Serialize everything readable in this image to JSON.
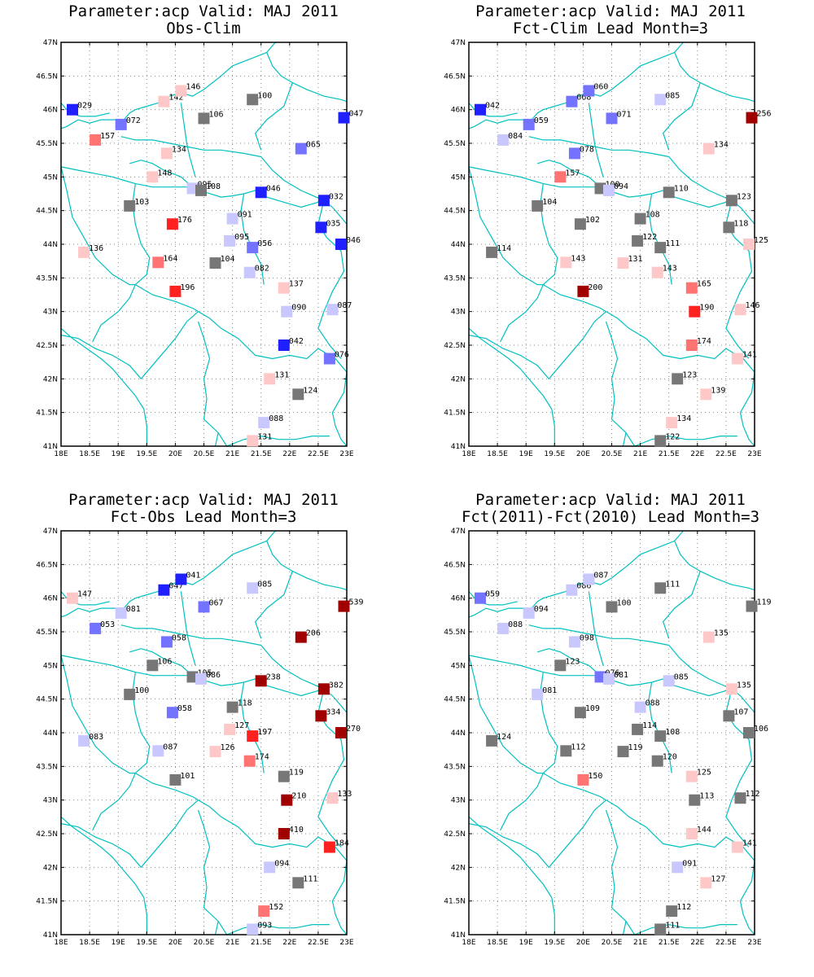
{
  "chart_data": [
    {
      "type": "scatter",
      "title": "Parameter:acp Valid: MAJ 2011",
      "subtitle": "Obs-Clim",
      "xlim": [
        18,
        23
      ],
      "ylim": [
        41,
        47
      ],
      "x_ticks": [
        "18E",
        "18.5E",
        "19E",
        "19.5E",
        "20E",
        "20.5E",
        "21E",
        "21.5E",
        "22E",
        "22.5E",
        "23E"
      ],
      "y_ticks": [
        "41N",
        "41.5N",
        "42N",
        "42.5N",
        "43N",
        "43.5N",
        "44N",
        "44.5N",
        "45N",
        "45.5N",
        "46N",
        "46.5N",
        "47N"
      ],
      "grid": true,
      "points": [
        {
          "lon": 18.2,
          "lat": 46.0,
          "label": "029"
        },
        {
          "lon": 19.05,
          "lat": 45.78,
          "label": "072"
        },
        {
          "lon": 18.6,
          "lat": 45.55,
          "label": "157"
        },
        {
          "lon": 19.8,
          "lat": 46.12,
          "label": "142"
        },
        {
          "lon": 20.1,
          "lat": 46.28,
          "label": "146"
        },
        {
          "lon": 21.35,
          "lat": 46.15,
          "label": "100"
        },
        {
          "lon": 20.5,
          "lat": 45.87,
          "label": "106"
        },
        {
          "lon": 22.95,
          "lat": 45.88,
          "label": "047"
        },
        {
          "lon": 19.85,
          "lat": 45.35,
          "label": "134"
        },
        {
          "lon": 22.2,
          "lat": 45.42,
          "label": "065"
        },
        {
          "lon": 19.6,
          "lat": 45.0,
          "label": "148"
        },
        {
          "lon": 20.3,
          "lat": 44.83,
          "label": "095"
        },
        {
          "lon": 20.45,
          "lat": 44.8,
          "label": "108"
        },
        {
          "lon": 21.5,
          "lat": 44.77,
          "label": "046"
        },
        {
          "lon": 22.6,
          "lat": 44.65,
          "label": "032"
        },
        {
          "lon": 19.2,
          "lat": 44.57,
          "label": "103"
        },
        {
          "lon": 19.95,
          "lat": 44.3,
          "label": "176"
        },
        {
          "lon": 21.0,
          "lat": 44.38,
          "label": "091"
        },
        {
          "lon": 22.55,
          "lat": 44.25,
          "label": "035"
        },
        {
          "lon": 22.9,
          "lat": 44.0,
          "label": "046"
        },
        {
          "lon": 20.95,
          "lat": 44.05,
          "label": "095"
        },
        {
          "lon": 21.35,
          "lat": 43.95,
          "label": "056"
        },
        {
          "lon": 18.4,
          "lat": 43.88,
          "label": "136"
        },
        {
          "lon": 19.7,
          "lat": 43.73,
          "label": "164"
        },
        {
          "lon": 20.7,
          "lat": 43.72,
          "label": "104"
        },
        {
          "lon": 21.3,
          "lat": 43.58,
          "label": "082"
        },
        {
          "lon": 21.9,
          "lat": 43.35,
          "label": "137"
        },
        {
          "lon": 20.0,
          "lat": 43.3,
          "label": "196"
        },
        {
          "lon": 21.95,
          "lat": 43.0,
          "label": "090"
        },
        {
          "lon": 22.75,
          "lat": 43.03,
          "label": "087"
        },
        {
          "lon": 21.9,
          "lat": 42.5,
          "label": "042"
        },
        {
          "lon": 22.7,
          "lat": 42.3,
          "label": "076"
        },
        {
          "lon": 21.65,
          "lat": 42.0,
          "label": "131"
        },
        {
          "lon": 22.15,
          "lat": 41.77,
          "label": "124"
        },
        {
          "lon": 21.55,
          "lat": 41.35,
          "label": "088"
        },
        {
          "lon": 21.35,
          "lat": 41.08,
          "label": "131"
        }
      ]
    },
    {
      "type": "scatter",
      "title": "Parameter:acp Valid: MAJ 2011",
      "subtitle": "Fct-Clim Lead Month=3",
      "xlim": [
        18,
        23
      ],
      "ylim": [
        41,
        47
      ],
      "x_ticks": [
        "18E",
        "18.5E",
        "19E",
        "19.5E",
        "20E",
        "20.5E",
        "21E",
        "21.5E",
        "22E",
        "22.5E",
        "23E"
      ],
      "y_ticks": [
        "41N",
        "41.5N",
        "42N",
        "42.5N",
        "43N",
        "43.5N",
        "44N",
        "44.5N",
        "45N",
        "45.5N",
        "46N",
        "46.5N",
        "47N"
      ],
      "grid": true,
      "points": [
        {
          "lon": 18.2,
          "lat": 46.0,
          "label": "042"
        },
        {
          "lon": 19.05,
          "lat": 45.78,
          "label": "059"
        },
        {
          "lon": 18.6,
          "lat": 45.55,
          "label": "084"
        },
        {
          "lon": 19.8,
          "lat": 46.12,
          "label": "068"
        },
        {
          "lon": 20.1,
          "lat": 46.28,
          "label": "060"
        },
        {
          "lon": 21.35,
          "lat": 46.15,
          "label": "085"
        },
        {
          "lon": 20.5,
          "lat": 45.87,
          "label": "071"
        },
        {
          "lon": 22.95,
          "lat": 45.88,
          "label": "256"
        },
        {
          "lon": 19.85,
          "lat": 45.35,
          "label": "078"
        },
        {
          "lon": 22.2,
          "lat": 45.42,
          "label": "134"
        },
        {
          "lon": 19.6,
          "lat": 45.0,
          "label": "157"
        },
        {
          "lon": 20.3,
          "lat": 44.83,
          "label": "100"
        },
        {
          "lon": 20.45,
          "lat": 44.8,
          "label": "094"
        },
        {
          "lon": 21.5,
          "lat": 44.77,
          "label": "110"
        },
        {
          "lon": 22.6,
          "lat": 44.65,
          "label": "123"
        },
        {
          "lon": 19.2,
          "lat": 44.57,
          "label": "104"
        },
        {
          "lon": 19.95,
          "lat": 44.3,
          "label": "102"
        },
        {
          "lon": 21.0,
          "lat": 44.38,
          "label": "108"
        },
        {
          "lon": 22.55,
          "lat": 44.25,
          "label": "118"
        },
        {
          "lon": 22.9,
          "lat": 44.0,
          "label": "125"
        },
        {
          "lon": 20.95,
          "lat": 44.05,
          "label": "122"
        },
        {
          "lon": 21.35,
          "lat": 43.95,
          "label": "111"
        },
        {
          "lon": 18.4,
          "lat": 43.88,
          "label": "114"
        },
        {
          "lon": 19.7,
          "lat": 43.73,
          "label": "143"
        },
        {
          "lon": 20.7,
          "lat": 43.72,
          "label": "131"
        },
        {
          "lon": 21.3,
          "lat": 43.58,
          "label": "143"
        },
        {
          "lon": 21.9,
          "lat": 43.35,
          "label": "165"
        },
        {
          "lon": 20.0,
          "lat": 43.3,
          "label": "200"
        },
        {
          "lon": 21.95,
          "lat": 43.0,
          "label": "190"
        },
        {
          "lon": 22.75,
          "lat": 43.03,
          "label": "146"
        },
        {
          "lon": 21.9,
          "lat": 42.5,
          "label": "174"
        },
        {
          "lon": 22.7,
          "lat": 42.3,
          "label": "141"
        },
        {
          "lon": 21.65,
          "lat": 42.0,
          "label": "123"
        },
        {
          "lon": 22.15,
          "lat": 41.77,
          "label": "139"
        },
        {
          "lon": 21.55,
          "lat": 41.35,
          "label": "134"
        },
        {
          "lon": 21.35,
          "lat": 41.08,
          "label": "122"
        }
      ]
    },
    {
      "type": "scatter",
      "title": "Parameter:acp Valid: MAJ 2011",
      "subtitle": "Fct-Obs Lead Month=3",
      "xlim": [
        18,
        23
      ],
      "ylim": [
        41,
        47
      ],
      "x_ticks": [
        "18E",
        "18.5E",
        "19E",
        "19.5E",
        "20E",
        "20.5E",
        "21E",
        "21.5E",
        "22E",
        "22.5E",
        "23E"
      ],
      "y_ticks": [
        "41N",
        "41.5N",
        "42N",
        "42.5N",
        "43N",
        "43.5N",
        "44N",
        "44.5N",
        "45N",
        "45.5N",
        "46N",
        "46.5N",
        "47N"
      ],
      "grid": true,
      "points": [
        {
          "lon": 18.2,
          "lat": 46.0,
          "label": "147"
        },
        {
          "lon": 19.05,
          "lat": 45.78,
          "label": "081"
        },
        {
          "lon": 18.6,
          "lat": 45.55,
          "label": "053"
        },
        {
          "lon": 19.8,
          "lat": 46.12,
          "label": "047"
        },
        {
          "lon": 20.1,
          "lat": 46.28,
          "label": "041"
        },
        {
          "lon": 21.35,
          "lat": 46.15,
          "label": "085"
        },
        {
          "lon": 20.5,
          "lat": 45.87,
          "label": "067"
        },
        {
          "lon": 22.95,
          "lat": 45.88,
          "label": "539"
        },
        {
          "lon": 19.85,
          "lat": 45.35,
          "label": "058"
        },
        {
          "lon": 22.2,
          "lat": 45.42,
          "label": "206"
        },
        {
          "lon": 19.6,
          "lat": 45.0,
          "label": "106"
        },
        {
          "lon": 20.3,
          "lat": 44.83,
          "label": "105"
        },
        {
          "lon": 20.45,
          "lat": 44.8,
          "label": "086"
        },
        {
          "lon": 21.5,
          "lat": 44.77,
          "label": "238"
        },
        {
          "lon": 22.6,
          "lat": 44.65,
          "label": "382"
        },
        {
          "lon": 19.2,
          "lat": 44.57,
          "label": "100"
        },
        {
          "lon": 19.95,
          "lat": 44.3,
          "label": "058"
        },
        {
          "lon": 21.0,
          "lat": 44.38,
          "label": "118"
        },
        {
          "lon": 22.55,
          "lat": 44.25,
          "label": "334"
        },
        {
          "lon": 22.9,
          "lat": 44.0,
          "label": "270"
        },
        {
          "lon": 20.95,
          "lat": 44.05,
          "label": "127"
        },
        {
          "lon": 21.35,
          "lat": 43.95,
          "label": "197"
        },
        {
          "lon": 18.4,
          "lat": 43.88,
          "label": "083"
        },
        {
          "lon": 19.7,
          "lat": 43.73,
          "label": "087"
        },
        {
          "lon": 20.7,
          "lat": 43.72,
          "label": "126"
        },
        {
          "lon": 21.3,
          "lat": 43.58,
          "label": "174"
        },
        {
          "lon": 21.9,
          "lat": 43.35,
          "label": "119"
        },
        {
          "lon": 20.0,
          "lat": 43.3,
          "label": "101"
        },
        {
          "lon": 21.95,
          "lat": 43.0,
          "label": "210"
        },
        {
          "lon": 22.75,
          "lat": 43.03,
          "label": "133"
        },
        {
          "lon": 21.9,
          "lat": 42.5,
          "label": "410"
        },
        {
          "lon": 22.7,
          "lat": 42.3,
          "label": "184"
        },
        {
          "lon": 21.65,
          "lat": 42.0,
          "label": "094"
        },
        {
          "lon": 22.15,
          "lat": 41.77,
          "label": "111"
        },
        {
          "lon": 21.55,
          "lat": 41.35,
          "label": "152"
        },
        {
          "lon": 21.35,
          "lat": 41.08,
          "label": "093"
        }
      ]
    },
    {
      "type": "scatter",
      "title": "Parameter:acp Valid: MAJ 2011",
      "subtitle": "Fct(2011)-Fct(2010) Lead Month=3",
      "xlim": [
        18,
        23
      ],
      "ylim": [
        41,
        47
      ],
      "x_ticks": [
        "18E",
        "18.5E",
        "19E",
        "19.5E",
        "20E",
        "20.5E",
        "21E",
        "21.5E",
        "22E",
        "22.5E",
        "23E"
      ],
      "y_ticks": [
        "41N",
        "41.5N",
        "42N",
        "42.5N",
        "43N",
        "43.5N",
        "44N",
        "44.5N",
        "45N",
        "45.5N",
        "46N",
        "46.5N",
        "47N"
      ],
      "grid": true,
      "points": [
        {
          "lon": 18.2,
          "lat": 46.0,
          "label": "059"
        },
        {
          "lon": 19.05,
          "lat": 45.78,
          "label": "094"
        },
        {
          "lon": 18.6,
          "lat": 45.55,
          "label": "088"
        },
        {
          "lon": 19.8,
          "lat": 46.12,
          "label": "086"
        },
        {
          "lon": 20.1,
          "lat": 46.28,
          "label": "087"
        },
        {
          "lon": 21.35,
          "lat": 46.15,
          "label": "111"
        },
        {
          "lon": 20.5,
          "lat": 45.87,
          "label": "100"
        },
        {
          "lon": 22.95,
          "lat": 45.88,
          "label": "119"
        },
        {
          "lon": 19.85,
          "lat": 45.35,
          "label": "098"
        },
        {
          "lon": 22.2,
          "lat": 45.42,
          "label": "135"
        },
        {
          "lon": 19.6,
          "lat": 45.0,
          "label": "123"
        },
        {
          "lon": 20.3,
          "lat": 44.83,
          "label": "076"
        },
        {
          "lon": 20.45,
          "lat": 44.8,
          "label": "081"
        },
        {
          "lon": 21.5,
          "lat": 44.77,
          "label": "085"
        },
        {
          "lon": 22.6,
          "lat": 44.65,
          "label": "135"
        },
        {
          "lon": 19.2,
          "lat": 44.57,
          "label": "081"
        },
        {
          "lon": 19.95,
          "lat": 44.3,
          "label": "109"
        },
        {
          "lon": 21.0,
          "lat": 44.38,
          "label": "088"
        },
        {
          "lon": 22.55,
          "lat": 44.25,
          "label": "107"
        },
        {
          "lon": 22.9,
          "lat": 44.0,
          "label": "106"
        },
        {
          "lon": 20.95,
          "lat": 44.05,
          "label": "114"
        },
        {
          "lon": 21.35,
          "lat": 43.95,
          "label": "108"
        },
        {
          "lon": 18.4,
          "lat": 43.88,
          "label": "124"
        },
        {
          "lon": 19.7,
          "lat": 43.73,
          "label": "112"
        },
        {
          "lon": 20.7,
          "lat": 43.72,
          "label": "119"
        },
        {
          "lon": 21.3,
          "lat": 43.58,
          "label": "120"
        },
        {
          "lon": 21.9,
          "lat": 43.35,
          "label": "125"
        },
        {
          "lon": 20.0,
          "lat": 43.3,
          "label": "150"
        },
        {
          "lon": 21.95,
          "lat": 43.0,
          "label": "113"
        },
        {
          "lon": 22.75,
          "lat": 43.03,
          "label": "112"
        },
        {
          "lon": 21.9,
          "lat": 42.5,
          "label": "144"
        },
        {
          "lon": 22.7,
          "lat": 42.3,
          "label": "141"
        },
        {
          "lon": 21.65,
          "lat": 42.0,
          "label": "091"
        },
        {
          "lon": 22.15,
          "lat": 41.77,
          "label": "127"
        },
        {
          "lon": 21.55,
          "lat": 41.35,
          "label": "112"
        },
        {
          "lon": 21.35,
          "lat": 41.08,
          "label": "111"
        }
      ]
    }
  ],
  "colors": {
    "strong_blue": "#2020ff",
    "medium_blue": "#7373ff",
    "light_blue": "#c8c8ff",
    "neutral_gray": "#777777",
    "light_red": "#ffc8c8",
    "medium_red": "#ff7373",
    "strong_red": "#ff2020",
    "dark_red": "#a00000",
    "coastline": "#00c0c0",
    "grid": "#888888"
  }
}
